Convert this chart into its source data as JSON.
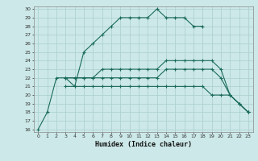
{
  "xlabel": "Humidex (Indice chaleur)",
  "x": [
    0,
    1,
    2,
    3,
    4,
    5,
    6,
    7,
    8,
    9,
    10,
    11,
    12,
    13,
    14,
    15,
    16,
    17,
    18,
    19,
    20,
    21,
    22,
    23
  ],
  "line1": [
    16,
    18,
    22,
    22,
    21,
    25,
    26,
    27,
    28,
    29,
    29,
    29,
    29,
    30,
    29,
    29,
    29,
    28,
    28,
    null,
    null,
    null,
    null,
    null
  ],
  "line2": [
    null,
    null,
    null,
    22,
    22,
    22,
    22,
    23,
    23,
    23,
    23,
    23,
    23,
    23,
    24,
    24,
    24,
    24,
    24,
    24,
    23,
    20,
    19,
    18
  ],
  "line3": [
    null,
    null,
    null,
    22,
    22,
    22,
    22,
    22,
    22,
    22,
    22,
    22,
    22,
    22,
    23,
    23,
    23,
    23,
    23,
    23,
    22,
    20,
    19,
    18
  ],
  "line4": [
    null,
    null,
    null,
    21,
    21,
    21,
    21,
    21,
    21,
    21,
    21,
    21,
    21,
    21,
    21,
    21,
    21,
    21,
    21,
    20,
    20,
    20,
    19,
    18
  ],
  "color": "#1a6b5a",
  "bg_color": "#cce8e8",
  "grid_color": "#aacece",
  "ylim": [
    16,
    30
  ],
  "yticks": [
    16,
    17,
    18,
    19,
    20,
    21,
    22,
    23,
    24,
    25,
    26,
    27,
    28,
    29,
    30
  ],
  "xlim": [
    -0.5,
    23.5
  ]
}
